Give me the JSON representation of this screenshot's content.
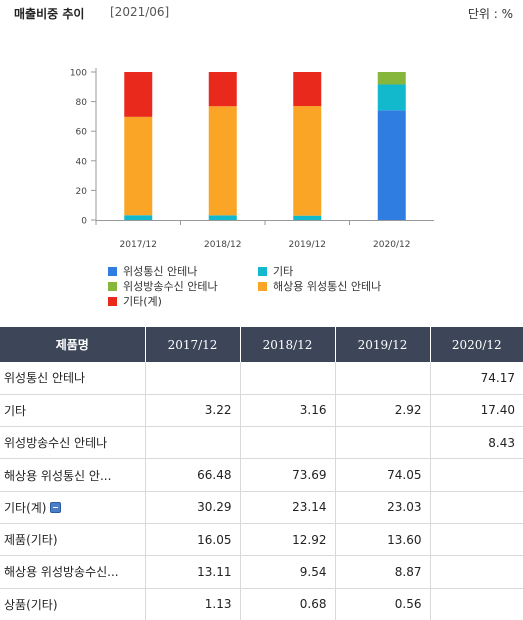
{
  "header": {
    "title": "매출비중 추이",
    "period": "[2021/06]",
    "unit": "단위 : %"
  },
  "chart_data": {
    "type": "bar",
    "stacked": true,
    "categories": [
      "2017/12",
      "2018/12",
      "2019/12",
      "2020/12"
    ],
    "ylim": [
      0,
      100
    ],
    "yticks": [
      0,
      20,
      40,
      60,
      80,
      100
    ],
    "series": [
      {
        "name": "위성통신 안테나",
        "color": "#2f7de1",
        "values": [
          0,
          0,
          0,
          74.17
        ]
      },
      {
        "name": "기타",
        "color": "#12b8cc",
        "values": [
          3.22,
          3.16,
          2.92,
          17.4
        ]
      },
      {
        "name": "위성방송수신 안테나",
        "color": "#86b63b",
        "values": [
          0,
          0,
          0,
          8.43
        ]
      },
      {
        "name": "해상용 위성통신 안테나",
        "color": "#fba526",
        "values": [
          66.48,
          73.69,
          74.05,
          0
        ]
      },
      {
        "name": "기타(계)",
        "color": "#e8291c",
        "values": [
          30.29,
          23.14,
          23.03,
          0
        ]
      }
    ],
    "legend_position": "bottom",
    "grid": false
  },
  "table": {
    "headers": [
      "제품명",
      "2017/12",
      "2018/12",
      "2019/12",
      "2020/12"
    ],
    "rows": [
      {
        "name": "위성통신 안테나",
        "values": [
          "",
          "",
          "",
          "74.17"
        ]
      },
      {
        "name": "기타",
        "values": [
          "3.22",
          "3.16",
          "2.92",
          "17.40"
        ]
      },
      {
        "name": "위성방송수신 안테나",
        "values": [
          "",
          "",
          "",
          "8.43"
        ]
      },
      {
        "name": "해상용 위성통신 안...",
        "values": [
          "66.48",
          "73.69",
          "74.05",
          ""
        ]
      },
      {
        "name": "기타(계)",
        "values": [
          "30.29",
          "23.14",
          "23.03",
          ""
        ],
        "expandable": true
      },
      {
        "name": "제품(기타)",
        "values": [
          "16.05",
          "12.92",
          "13.60",
          ""
        ]
      },
      {
        "name": "해상용 위성방송수신...",
        "values": [
          "13.11",
          "9.54",
          "8.87",
          ""
        ]
      },
      {
        "name": "상품(기타)",
        "values": [
          "1.13",
          "0.68",
          "0.56",
          ""
        ]
      }
    ]
  }
}
